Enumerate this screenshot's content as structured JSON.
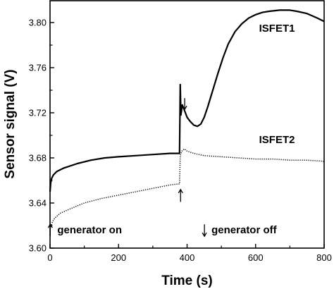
{
  "chart_data": {
    "type": "line",
    "xlabel": "Time (s)",
    "ylabel": "Sensor signal (V)",
    "xlim": [
      0,
      800
    ],
    "ylim": [
      3.6,
      3.82
    ],
    "xticks": [
      0,
      200,
      400,
      600,
      800
    ],
    "yticks": [
      3.6,
      3.64,
      3.68,
      3.72,
      3.76,
      3.8
    ],
    "xtick_labels": [
      "0",
      "200",
      "400",
      "600",
      "800"
    ],
    "ytick_labels": [
      "3.60",
      "3.64",
      "3.68",
      "3.72",
      "3.76",
      "3.80"
    ],
    "grid": false,
    "series": [
      {
        "name": "ISFET1",
        "style": "solid",
        "color": "#000000",
        "points": [
          [
            0,
            3.65
          ],
          [
            2,
            3.658
          ],
          [
            5,
            3.662
          ],
          [
            10,
            3.665
          ],
          [
            20,
            3.668
          ],
          [
            40,
            3.671
          ],
          [
            80,
            3.675
          ],
          [
            120,
            3.678
          ],
          [
            160,
            3.68
          ],
          [
            200,
            3.681
          ],
          [
            250,
            3.682
          ],
          [
            300,
            3.683
          ],
          [
            350,
            3.684
          ],
          [
            378,
            3.684
          ],
          [
            380,
            3.745
          ],
          [
            382,
            3.718
          ],
          [
            386,
            3.727
          ],
          [
            390,
            3.724
          ],
          [
            395,
            3.72
          ],
          [
            400,
            3.716
          ],
          [
            410,
            3.712
          ],
          [
            420,
            3.709
          ],
          [
            430,
            3.708
          ],
          [
            440,
            3.71
          ],
          [
            450,
            3.716
          ],
          [
            460,
            3.725
          ],
          [
            475,
            3.74
          ],
          [
            490,
            3.755
          ],
          [
            505,
            3.769
          ],
          [
            520,
            3.781
          ],
          [
            540,
            3.792
          ],
          [
            560,
            3.799
          ],
          [
            580,
            3.804
          ],
          [
            600,
            3.807
          ],
          [
            620,
            3.809
          ],
          [
            640,
            3.81
          ],
          [
            670,
            3.811
          ],
          [
            700,
            3.811
          ],
          [
            720,
            3.81
          ],
          [
            750,
            3.808
          ],
          [
            780,
            3.804
          ],
          [
            800,
            3.801
          ]
        ]
      },
      {
        "name": "ISFET2",
        "style": "dotted",
        "color": "#000000",
        "points": [
          [
            0,
            3.617
          ],
          [
            3,
            3.62
          ],
          [
            8,
            3.624
          ],
          [
            15,
            3.627
          ],
          [
            30,
            3.631
          ],
          [
            60,
            3.635
          ],
          [
            100,
            3.64
          ],
          [
            150,
            3.644
          ],
          [
            200,
            3.647
          ],
          [
            250,
            3.65
          ],
          [
            300,
            3.653
          ],
          [
            350,
            3.656
          ],
          [
            378,
            3.657
          ],
          [
            380,
            3.682
          ],
          [
            385,
            3.686
          ],
          [
            392,
            3.688
          ],
          [
            400,
            3.686
          ],
          [
            420,
            3.684
          ],
          [
            450,
            3.682
          ],
          [
            500,
            3.681
          ],
          [
            550,
            3.68
          ],
          [
            600,
            3.679
          ],
          [
            650,
            3.679
          ],
          [
            700,
            3.678
          ],
          [
            750,
            3.678
          ],
          [
            800,
            3.677
          ]
        ]
      }
    ],
    "series_labels": [
      {
        "text": "ISFET1",
        "x": 610,
        "y": 3.792
      },
      {
        "text": "ISFET2",
        "x": 610,
        "y": 3.693
      }
    ],
    "annotations": [
      {
        "text": "generator on",
        "arrow": "up",
        "x": 50,
        "y": 3.613
      },
      {
        "text": "generator off",
        "arrow": "down",
        "x": 500,
        "y": 3.613
      }
    ],
    "event_arrows": [
      {
        "direction": "down",
        "x": 393,
        "y_from": 3.733,
        "y_to": 3.723
      },
      {
        "direction": "up",
        "x": 381,
        "y_from": 3.641,
        "y_to": 3.652
      }
    ]
  }
}
